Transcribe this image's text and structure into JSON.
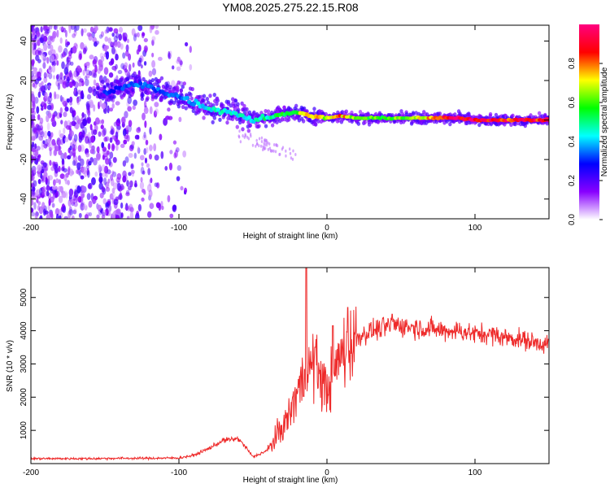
{
  "title": "YM08.2025.275.22.15.R08",
  "chart_data": [
    {
      "type": "heatmap",
      "xlabel": "Height of straight line (km)",
      "ylabel": "Frequency (Hz)",
      "xlim": [
        -200,
        150
      ],
      "ylim": [
        -50,
        48
      ],
      "xticks": [
        -200,
        -100,
        0,
        100
      ],
      "yticks": [
        -40,
        -20,
        0,
        20,
        40
      ],
      "colorbar": {
        "label": "Normalized spectral amplitude",
        "range": [
          0,
          1
        ],
        "ticks": [
          0.0,
          0.2,
          0.4,
          0.6,
          0.8
        ],
        "colors": [
          "#ffffff",
          "#8800ff",
          "#0000ff",
          "#00ffff",
          "#00ff00",
          "#ffff00",
          "#ff0000",
          "#ff0080"
        ]
      },
      "ridge": {
        "x": [
          -150,
          -140,
          -130,
          -120,
          -110,
          -100,
          -90,
          -80,
          -70,
          -60,
          -50,
          -40,
          -30,
          -20,
          -10,
          0,
          10,
          20,
          40,
          60,
          80,
          90,
          100,
          120,
          150
        ],
        "frequency": [
          14,
          16,
          18,
          17,
          14,
          12,
          9,
          6,
          5,
          3,
          0,
          1,
          3,
          4,
          2,
          1,
          2,
          1,
          1,
          1,
          1,
          1,
          0,
          0,
          0
        ],
        "amplitude": [
          0.3,
          0.3,
          0.35,
          0.35,
          0.35,
          0.35,
          0.4,
          0.45,
          0.45,
          0.45,
          0.45,
          0.5,
          0.55,
          0.65,
          0.75,
          0.7,
          0.8,
          0.6,
          0.6,
          0.65,
          0.9,
          0.95,
          0.95,
          0.9,
          0.9
        ]
      }
    },
    {
      "type": "line",
      "xlabel": "Height of straight line (km)",
      "ylabel": "SNR (10 * v/v)",
      "xlim": [
        -200,
        150
      ],
      "ylim": [
        0,
        5900
      ],
      "xticks": [
        -200,
        -100,
        0,
        100
      ],
      "yticks": [
        1000,
        2000,
        3000,
        4000,
        5000
      ],
      "color": "#ee2a2a",
      "series": [
        {
          "name": "SNR",
          "x": [
            -200,
            -180,
            -160,
            -140,
            -120,
            -100,
            -90,
            -80,
            -70,
            -60,
            -55,
            -50,
            -40,
            -30,
            -25,
            -20,
            -15,
            -10,
            -5,
            0,
            5,
            10,
            15,
            20,
            30,
            40,
            45,
            50,
            60,
            70,
            80,
            90,
            100,
            110,
            120,
            130,
            140,
            150
          ],
          "y": [
            150,
            150,
            150,
            160,
            160,
            170,
            250,
            450,
            700,
            750,
            500,
            200,
            400,
            1100,
            1500,
            2200,
            2600,
            3000,
            2700,
            2200,
            2800,
            3300,
            3600,
            3800,
            4000,
            4100,
            4200,
            4150,
            4100,
            4050,
            4000,
            4000,
            3900,
            3900,
            3800,
            3750,
            3650,
            3600
          ]
        }
      ],
      "spikes": [
        {
          "x": -14,
          "y": 5900
        },
        {
          "x": -8,
          "y": 3500
        },
        {
          "x": 4,
          "y": 4150
        },
        {
          "x": 14,
          "y": 4700
        },
        {
          "x": 44,
          "y": 4500
        }
      ]
    }
  ]
}
